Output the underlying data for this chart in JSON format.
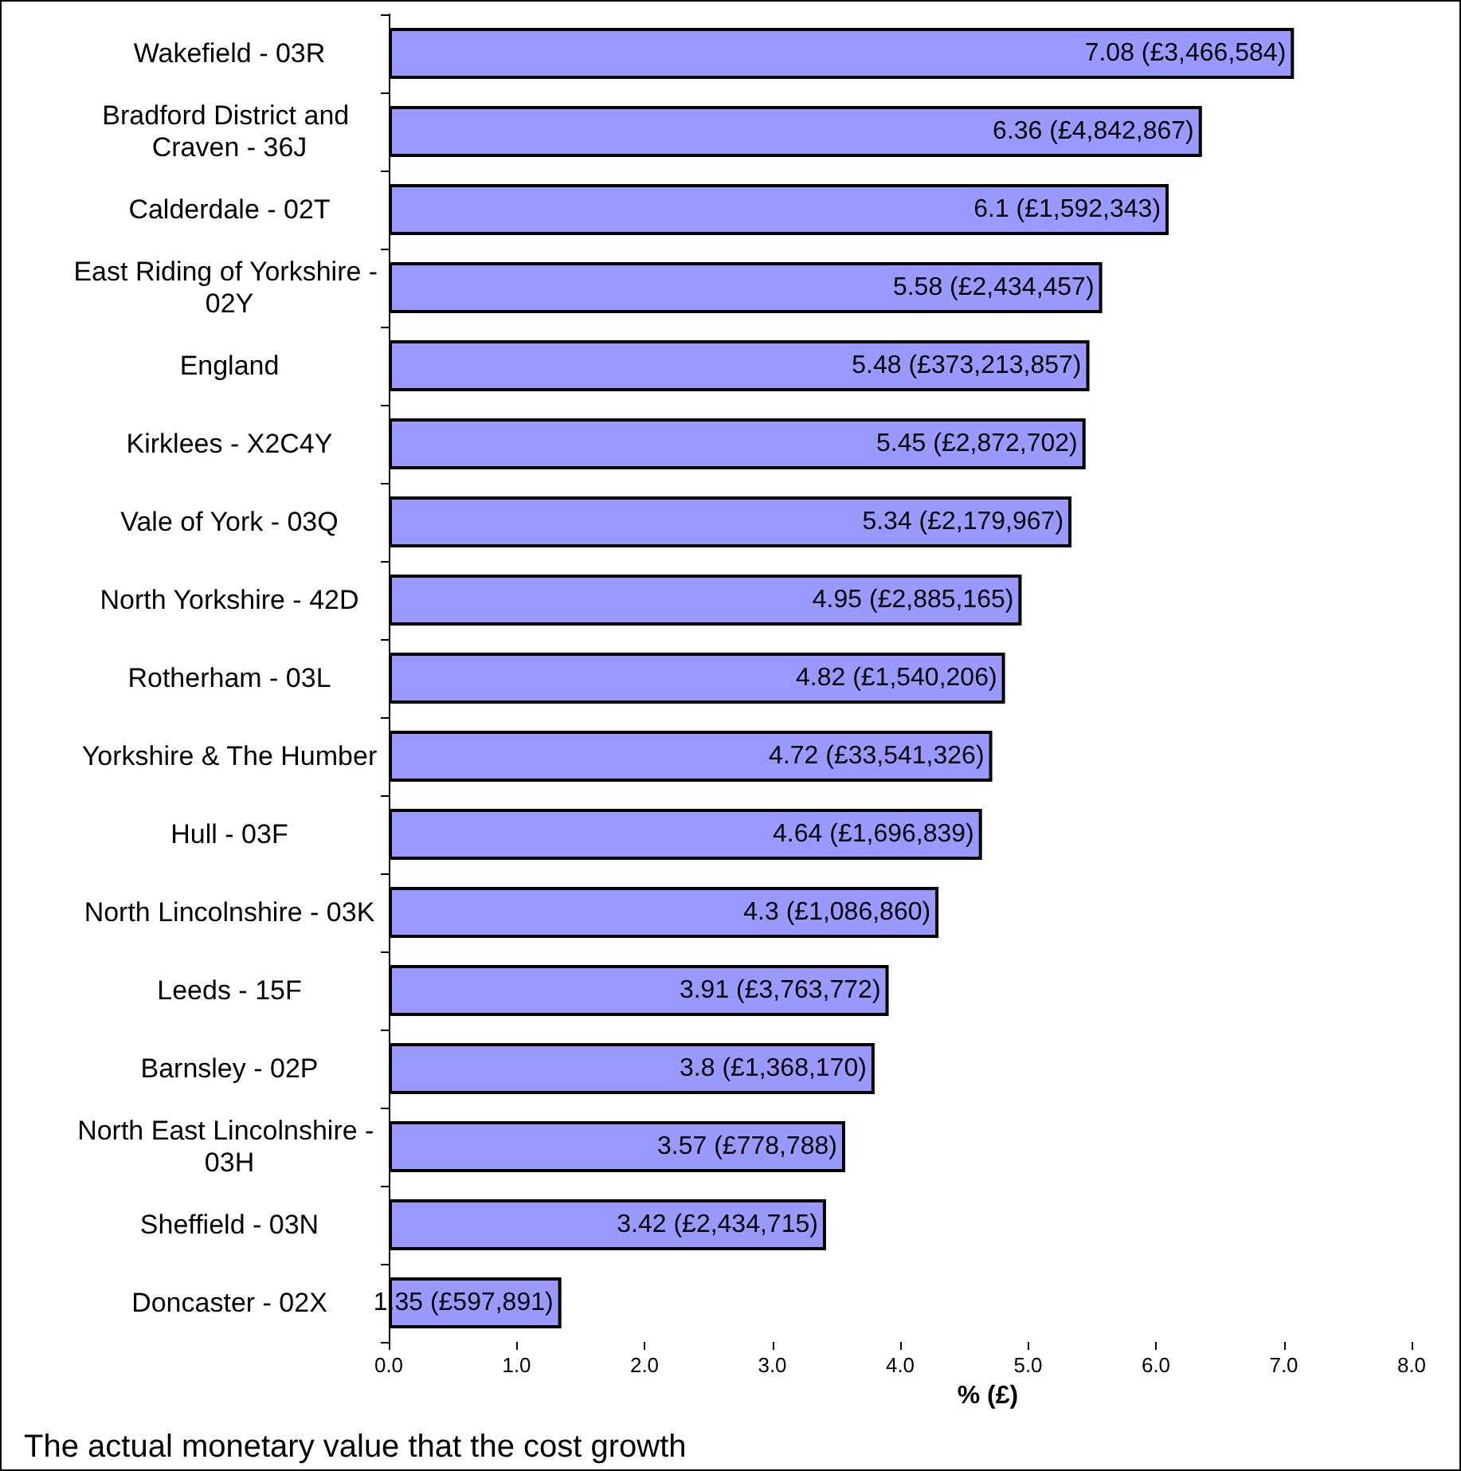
{
  "chart_data": {
    "type": "bar",
    "orientation": "horizontal",
    "xlabel": "% (£)",
    "annotations": [
      "The actual monetary value that the cost growth"
    ],
    "categories": [
      "Wakefield - 03R",
      "Bradford District and Craven - 36J",
      "Calderdale - 02T",
      "East Riding of Yorkshire - 02Y",
      "England",
      "Kirklees - X2C4Y",
      "Vale of York - 03Q",
      "North Yorkshire - 42D",
      "Rotherham - 03L",
      "Yorkshire & The Humber",
      "Hull - 03F",
      "North Lincolnshire - 03K",
      "Leeds - 15F",
      "Barnsley - 02P",
      "North East Lincolnshire - 03H",
      "Sheffield - 03N",
      "Doncaster - 02X"
    ],
    "values": [
      7.08,
      6.36,
      6.1,
      5.58,
      5.48,
      5.45,
      5.34,
      4.95,
      4.82,
      4.72,
      4.64,
      4.3,
      3.91,
      3.8,
      3.57,
      3.42,
      1.35
    ],
    "value_labels": [
      "7.08 (£3,466,584)",
      "6.36 (£4,842,867)",
      "6.1 (£1,592,343)",
      "5.58 (£2,434,457)",
      "5.48 (£373,213,857)",
      "5.45 (£2,872,702)",
      "5.34 (£2,179,967)",
      "4.95 (£2,885,165)",
      "4.82 (£1,540,206)",
      "4.72 (£33,541,326)",
      "4.64 (£1,696,839)",
      "4.3 (£1,086,860)",
      "3.91 (£3,763,772)",
      "3.8 (£1,368,170)",
      "3.57 (£778,788)",
      "3.42 (£2,434,715)",
      "1.35 (£597,891)"
    ],
    "color": "#9999ff",
    "xlim": [
      0,
      8
    ],
    "xticks": [
      {
        "value": 0,
        "label": "0.0"
      },
      {
        "value": 1,
        "label": "1.0"
      },
      {
        "value": 2,
        "label": "2.0"
      },
      {
        "value": 3,
        "label": "3.0"
      },
      {
        "value": 4,
        "label": "4.0"
      },
      {
        "value": 5,
        "label": "5.0"
      },
      {
        "value": 6,
        "label": "6.0"
      },
      {
        "value": 7,
        "label": "7.0"
      },
      {
        "value": 8,
        "label": "8.0"
      }
    ],
    "grid": false
  }
}
